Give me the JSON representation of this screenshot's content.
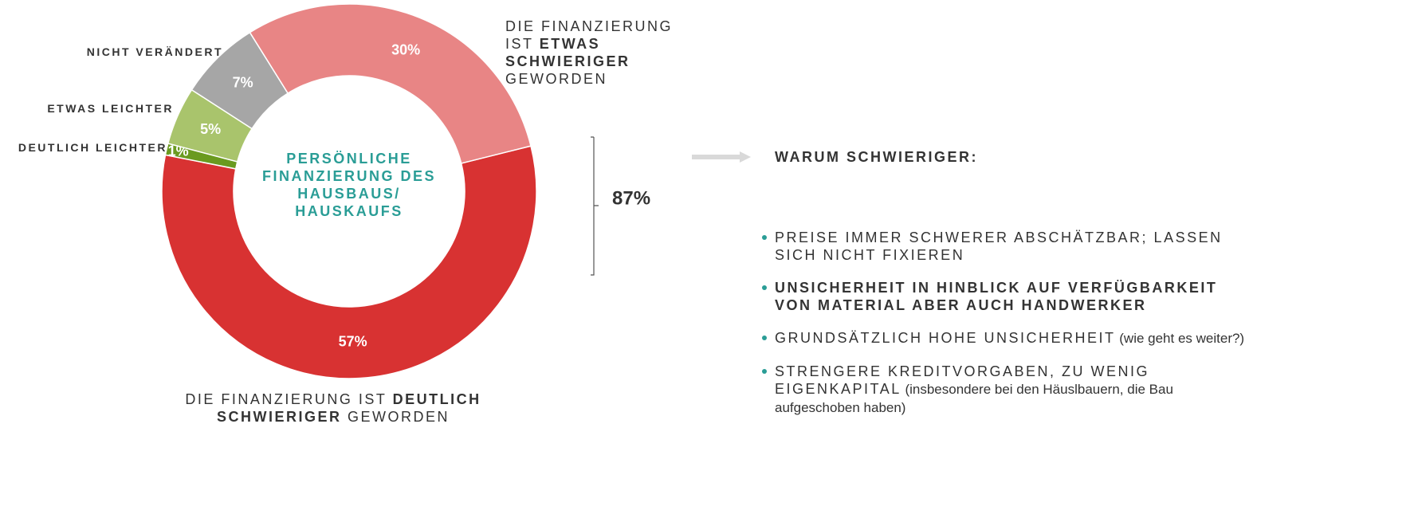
{
  "chart_data": {
    "type": "donut",
    "start_angle": 76,
    "center_label": "PERSÖNLICHE FINANZIERUNG DES HAUSBAUS/ HAUSKAUFS",
    "center_color": "#2a9d96",
    "categories": [
      [
        {
          "text": "DIE FINANZIERUNG IST "
        },
        {
          "text": "DEUTLICH SCHWIERIGER",
          "bold": true
        },
        {
          "text": " GEWORDEN"
        }
      ],
      [
        {
          "text": "DEUTLICH LEICHTER",
          "bold": true
        }
      ],
      [
        {
          "text": "ETWAS LEICHTER",
          "bold": true
        }
      ],
      [
        {
          "text": "NICHT VERÄNDERT",
          "bold": true
        }
      ],
      [
        {
          "text": "DIE FINANZIERUNG IST "
        },
        {
          "text": "ETWAS SCHWIERIGER",
          "bold": true
        },
        {
          "text": " GEWORDEN"
        }
      ]
    ],
    "values": [
      57,
      1,
      5,
      7,
      30
    ],
    "value_labels": [
      "57%",
      "1%",
      "5%",
      "7%",
      "30%"
    ],
    "colors": [
      "#d83232",
      "#6a9a1f",
      "#a9c46c",
      "#a6a6a6",
      "#e88585"
    ],
    "bracket_label": "87%",
    "side_title": "WARUM SCHWIERIGER:",
    "side_items": [
      [
        {
          "text": "PREISE IMMER SCHWERER ABSCHÄTZBAR; LASSEN SICH NICHT FIXIEREN"
        }
      ],
      [
        {
          "text": "UNSICHERHEIT IN HINBLICK AUF VERFÜGBARKEIT VON MATERIAL ABER AUCH HANDWERKER",
          "bold": true
        }
      ],
      [
        {
          "text": "GRUNDSÄTZLICH HOHE UNSICHERHEIT"
        },
        {
          "text": " (wie geht es weiter?)",
          "plain": true
        }
      ],
      [
        {
          "text": "STRENGERE KREDITVORGABEN, ZU WENIG EIGENKAPITAL"
        },
        {
          "text": " (insbesondere bei den Häuslbauern, die Bau aufgeschoben haben)",
          "plain": true
        }
      ]
    ]
  }
}
